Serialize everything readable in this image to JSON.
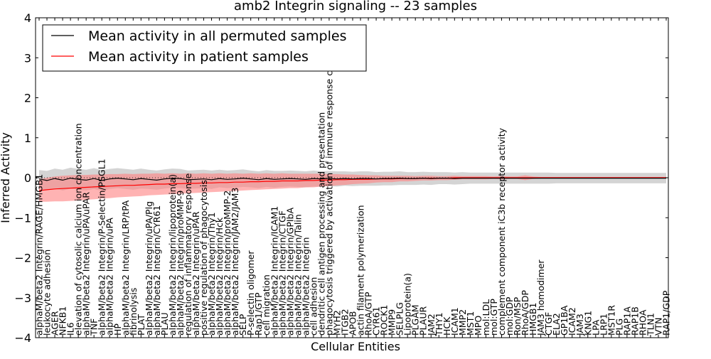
{
  "chart_data": {
    "type": "line",
    "title": "amb2 Integrin signaling -- 23 samples",
    "xlabel": "Cellular Entities",
    "ylabel": "Inferred Activity",
    "ylim": [
      -4,
      4
    ],
    "yticks": [
      -4,
      -3,
      -2,
      -1,
      0,
      1,
      2,
      3,
      4
    ],
    "grid": false,
    "legend_position": "top-left",
    "categories": [
      "alphaM/beta2 Integrin/RAGE/HMGB1",
      "leukocyte adhesion",
      "AGER",
      "NFKB1",
      "IL6",
      "elevation of cytosolic calcium ion concentration",
      "alphaM/beta2 Integrin/uPA/uPAR",
      "TNF",
      "alphaM/beta2 Integrin/P-Selectin/PSGL1",
      "alphaM/beta2 Integrin/uPA",
      "HP",
      "alphaM/beta2 Integrin/LRP/tPA",
      "fibrinolysis",
      "PLAT",
      "alphaM/beta2 Integrin/uPA/Plg",
      "alphaM/beta2 Integrin/CYR61",
      "PLAU",
      "alphaM/beta2 Integrin/lipoprotein(a)",
      "alphaM/beta2 Integrin/proMMP-9",
      "regulation of inflammatory response",
      "alphaM/beta2 Integrin/uPAR",
      "positive regulation of phagocytosis",
      "alphaM/beta2 Integrin/Thy1",
      "alphaM/beta2 Integrin/Hck",
      "alphaM/beta2 Integrin/proMMP-2",
      "alphaM/beta2 Integrin/JAM2/JAM3",
      "SELP",
      "P-selectin oligomer",
      "Rap1/GTP",
      "cell migration",
      "alphaM/beta2 Integrin/ICAM1",
      "alphaM/beta2 Integrin/CTGF",
      "alphaM/beta2 Integrin/GPIbA",
      "alphaM/beta2 Integrin/Talin",
      "alphaM/beta2 Integrin",
      "cell adhesion",
      "dendritic cell antigen processing and presentation",
      "phagocytosis triggered by activation of immune response cell surface",
      "MYH2",
      "ITGB2",
      "APOB",
      "actin filament polymerization",
      "RhoA/GTP",
      "CYR61",
      "ROCK1",
      "MMP9",
      "SELPLG",
      "Lipoprotein(a)",
      "PLGAM",
      "PLAUR",
      "JAM2",
      "THY1",
      "HCK",
      "ICAM1",
      "MMP2",
      "MST1",
      "MPO",
      "mol:LDL",
      "mol:GTP",
      "complement component iC3b receptor activity",
      "mol:GDP",
      "Ron/MSP",
      "RhoA/GDP",
      "HMGB1",
      "JAM3 homodimer",
      "CTGF",
      "ELA2",
      "GP1BA",
      "ICAM2",
      "JAM3",
      "KNG1",
      "LPA",
      "LRP1",
      "MST1R",
      "PLG",
      "RAP1A",
      "RAP1B",
      "RHOA",
      "TLN1",
      "VTN",
      "RAP1/GDP"
    ],
    "series": [
      {
        "name": "Mean activity in all permuted samples",
        "color": "#000000",
        "band_color": "#b0b0b0",
        "values": [
          -0.03,
          -0.07,
          -0.02,
          -0.06,
          -0.01,
          -0.04,
          -0.06,
          -0.02,
          -0.07,
          -0.03,
          -0.01,
          -0.03,
          -0.05,
          -0.02,
          -0.04,
          -0.06,
          -0.03,
          -0.01,
          -0.02,
          -0.05,
          -0.04,
          -0.03,
          -0.05,
          -0.02,
          -0.04,
          -0.03,
          -0.01,
          -0.03,
          -0.05,
          -0.02,
          -0.04,
          -0.03,
          -0.02,
          -0.03,
          -0.04,
          -0.02,
          -0.03,
          -0.02,
          -0.03,
          -0.02,
          -0.03,
          -0.02,
          -0.02,
          -0.03,
          -0.02,
          -0.02,
          -0.01,
          -0.02,
          -0.02,
          -0.01,
          -0.02,
          -0.01,
          -0.01,
          -0.02,
          -0.01,
          -0.01,
          -0.01,
          -0.01,
          -0.01,
          -0.01,
          -0.01,
          -0.01,
          -0.01,
          -0.01,
          -0.01,
          -0.01,
          -0.01,
          -0.01,
          -0.01,
          -0.01,
          -0.01,
          -0.01,
          -0.01,
          -0.01,
          -0.01,
          -0.01,
          -0.01,
          -0.01,
          -0.01,
          -0.01,
          -0.01
        ],
        "band_half_width": [
          0.22,
          0.24,
          0.25,
          0.26,
          0.26,
          0.26,
          0.26,
          0.26,
          0.26,
          0.25,
          0.25,
          0.25,
          0.25,
          0.25,
          0.24,
          0.24,
          0.24,
          0.24,
          0.24,
          0.23,
          0.23,
          0.23,
          0.23,
          0.22,
          0.22,
          0.22,
          0.22,
          0.21,
          0.21,
          0.21,
          0.21,
          0.2,
          0.2,
          0.2,
          0.2,
          0.2,
          0.19,
          0.19,
          0.19,
          0.18,
          0.18,
          0.18,
          0.18,
          0.17,
          0.17,
          0.17,
          0.17,
          0.16,
          0.16,
          0.16,
          0.16,
          0.15,
          0.15,
          0.15,
          0.15,
          0.14,
          0.14,
          0.14,
          0.14,
          0.14,
          0.14,
          0.14,
          0.14,
          0.14,
          0.14,
          0.14,
          0.13,
          0.13,
          0.13,
          0.13,
          0.13,
          0.13,
          0.13,
          0.13,
          0.13,
          0.13,
          0.13,
          0.13,
          0.13,
          0.13,
          0.13
        ]
      },
      {
        "name": "Mean activity in patient samples",
        "color": "#ff0000",
        "band_color": "#ff8080",
        "values": [
          -0.32,
          -0.3,
          -0.28,
          -0.27,
          -0.26,
          -0.25,
          -0.24,
          -0.23,
          -0.22,
          -0.21,
          -0.2,
          -0.19,
          -0.19,
          -0.18,
          -0.17,
          -0.16,
          -0.16,
          -0.15,
          -0.15,
          -0.14,
          -0.14,
          -0.13,
          -0.13,
          -0.12,
          -0.12,
          -0.11,
          -0.11,
          -0.1,
          -0.1,
          -0.09,
          -0.09,
          -0.08,
          -0.08,
          -0.08,
          -0.07,
          -0.07,
          -0.06,
          -0.06,
          -0.05,
          -0.05,
          -0.04,
          -0.04,
          -0.04,
          -0.03,
          -0.03,
          -0.03,
          -0.02,
          -0.02,
          -0.02,
          -0.01,
          -0.01,
          -0.01,
          -0.01,
          0.0,
          0.0,
          0.0,
          0.0,
          0.0,
          0.0,
          0.0,
          0.0,
          0.0,
          0.0,
          0.0,
          0.0,
          0.0,
          0.0,
          0.0,
          0.0,
          0.0,
          0.0,
          0.0,
          0.0,
          0.0,
          0.0,
          0.0,
          0.0,
          0.0,
          0.0,
          0.0,
          0.0
        ],
        "band_half_width": [
          0.28,
          0.3,
          0.31,
          0.32,
          0.32,
          0.32,
          0.31,
          0.31,
          0.3,
          0.3,
          0.29,
          0.29,
          0.28,
          0.28,
          0.27,
          0.27,
          0.26,
          0.26,
          0.25,
          0.25,
          0.24,
          0.24,
          0.23,
          0.23,
          0.22,
          0.22,
          0.21,
          0.21,
          0.2,
          0.2,
          0.19,
          0.19,
          0.18,
          0.18,
          0.17,
          0.17,
          0.16,
          0.15,
          0.14,
          0.13,
          0.12,
          0.11,
          0.1,
          0.09,
          0.08,
          0.08,
          0.07,
          0.07,
          0.06,
          0.06,
          0.06,
          0.05,
          0.05,
          0.05,
          0.04,
          0.04,
          0.04,
          0.04,
          0.03,
          0.04,
          0.03,
          0.03,
          0.06,
          0.03,
          0.02,
          0.02,
          0.02,
          0.02,
          0.02,
          0.02,
          0.02,
          0.02,
          0.02,
          0.02,
          0.02,
          0.02,
          0.02,
          0.02,
          0.02,
          0.02,
          0.02
        ]
      }
    ]
  }
}
